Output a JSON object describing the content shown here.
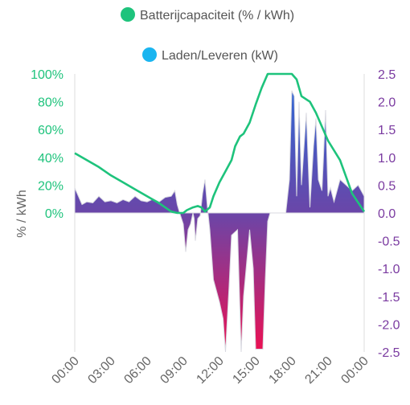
{
  "colors": {
    "battery_line": "#1ec37c",
    "power_legend": "#1ab5f0",
    "right_axis_text": "#7a3aa0",
    "area_top_color": "#2a6ad8",
    "area_zero_color": "#6a46a8",
    "area_bottom_color": "#ec1052",
    "axis_line": "#dddddd"
  },
  "chart_data": {
    "type": "line",
    "legend": [
      {
        "label": "Batterijcapaciteit (% / kWh)",
        "color": "#1ec37c"
      },
      {
        "label": "Laden/Leveren (kW)",
        "color": "#1ab5f0"
      }
    ],
    "legend_position": "top",
    "ylabel_left": "% / kWh",
    "yticks_left": [
      "100%",
      "80%",
      "60%",
      "40%",
      "20%",
      "0%"
    ],
    "ylim_left": [
      0,
      100
    ],
    "yticks_right": [
      "2.5",
      "2.0",
      "1.5",
      "1.0",
      "0.5",
      "0.0",
      "-0.5",
      "-1.0",
      "-1.5",
      "-2.0",
      "-2.5"
    ],
    "ylim_right": [
      -2.5,
      2.5
    ],
    "xticks": [
      "00:00",
      "03:00",
      "06:00",
      "09:00",
      "12:00",
      "15:00",
      "18:00",
      "21:00",
      "00:00"
    ],
    "xlim_hours": [
      0,
      24
    ],
    "grid": false,
    "series": [
      {
        "name": "Batterijcapaciteit (% / kWh)",
        "axis": "left",
        "kind": "line",
        "points": [
          [
            0,
            43
          ],
          [
            1,
            38
          ],
          [
            2,
            33
          ],
          [
            3,
            27
          ],
          [
            4,
            22
          ],
          [
            5,
            17
          ],
          [
            6,
            12
          ],
          [
            7,
            7
          ],
          [
            7.5,
            4
          ],
          [
            8,
            1
          ],
          [
            8.5,
            0
          ],
          [
            9,
            0
          ],
          [
            9.3,
            2
          ],
          [
            9.8,
            4
          ],
          [
            10.2,
            5
          ],
          [
            10.5,
            4
          ],
          [
            10.8,
            1
          ],
          [
            11.2,
            4
          ],
          [
            11.5,
            12
          ],
          [
            12,
            22
          ],
          [
            12.5,
            30
          ],
          [
            13,
            38
          ],
          [
            13.3,
            48
          ],
          [
            13.7,
            55
          ],
          [
            14,
            57
          ],
          [
            14.5,
            65
          ],
          [
            15,
            78
          ],
          [
            15.5,
            90
          ],
          [
            16,
            100
          ],
          [
            17,
            100
          ],
          [
            18,
            100
          ],
          [
            18.4,
            96
          ],
          [
            18.8,
            84
          ],
          [
            19.5,
            80
          ],
          [
            20,
            72
          ],
          [
            21,
            52
          ],
          [
            22,
            38
          ],
          [
            23,
            14
          ],
          [
            24,
            1
          ]
        ]
      },
      {
        "name": "Laden/Leveren (kW)",
        "axis": "right",
        "kind": "area",
        "points": [
          [
            0,
            0.45
          ],
          [
            0.3,
            0.3
          ],
          [
            0.6,
            0.15
          ],
          [
            1,
            0.2
          ],
          [
            1.5,
            0.18
          ],
          [
            2,
            0.3
          ],
          [
            2.5,
            0.2
          ],
          [
            3,
            0.22
          ],
          [
            3.5,
            0.18
          ],
          [
            4,
            0.24
          ],
          [
            4.5,
            0.2
          ],
          [
            5,
            0.3
          ],
          [
            5.5,
            0.22
          ],
          [
            6,
            0.2
          ],
          [
            6.5,
            0.25
          ],
          [
            7,
            0.2
          ],
          [
            7.5,
            0.28
          ],
          [
            8,
            0.3
          ],
          [
            8.3,
            0.4
          ],
          [
            8.5,
            0.15
          ],
          [
            8.7,
            0.0
          ],
          [
            9,
            -0.2
          ],
          [
            9.2,
            -0.7
          ],
          [
            9.4,
            -0.3
          ],
          [
            9.6,
            -0.2
          ],
          [
            9.8,
            0.0
          ],
          [
            9.9,
            -0.1
          ],
          [
            10,
            -0.5
          ],
          [
            10.2,
            -0.1
          ],
          [
            10.4,
            -0.05
          ],
          [
            10.6,
            0.35
          ],
          [
            10.8,
            0.6
          ],
          [
            11,
            0.1
          ],
          [
            11.2,
            -0.3
          ],
          [
            11.5,
            -1.2
          ],
          [
            12,
            -1.6
          ],
          [
            12.3,
            -1.9
          ],
          [
            12.5,
            -2.5
          ],
          [
            12.8,
            -1.3
          ],
          [
            13,
            -0.4
          ],
          [
            13.5,
            -0.3
          ],
          [
            13.8,
            -2.5
          ],
          [
            14,
            -1.5
          ],
          [
            14.5,
            -0.3
          ],
          [
            14.8,
            -1.0
          ],
          [
            15,
            -2.45
          ],
          [
            15.6,
            -2.45
          ],
          [
            15.8,
            -1.2
          ],
          [
            16,
            -0.15
          ],
          [
            16.2,
            0
          ],
          [
            17.5,
            0
          ],
          [
            17.8,
            0.6
          ],
          [
            18,
            2.2
          ],
          [
            18.2,
            2.1
          ],
          [
            18.4,
            0.3
          ],
          [
            18.6,
            2.0
          ],
          [
            18.8,
            0.5
          ],
          [
            19.2,
            1.8
          ],
          [
            19.5,
            0.1
          ],
          [
            19.8,
            1.2
          ],
          [
            20,
            1.7
          ],
          [
            20.2,
            0.6
          ],
          [
            20.5,
            0.4
          ],
          [
            20.8,
            1.85
          ],
          [
            21,
            0.3
          ],
          [
            21.2,
            0.45
          ],
          [
            21.5,
            0.2
          ],
          [
            22,
            0.6
          ],
          [
            22.5,
            0.5
          ],
          [
            23,
            0.4
          ],
          [
            23.5,
            0.5
          ],
          [
            24,
            0.3
          ]
        ]
      }
    ]
  }
}
